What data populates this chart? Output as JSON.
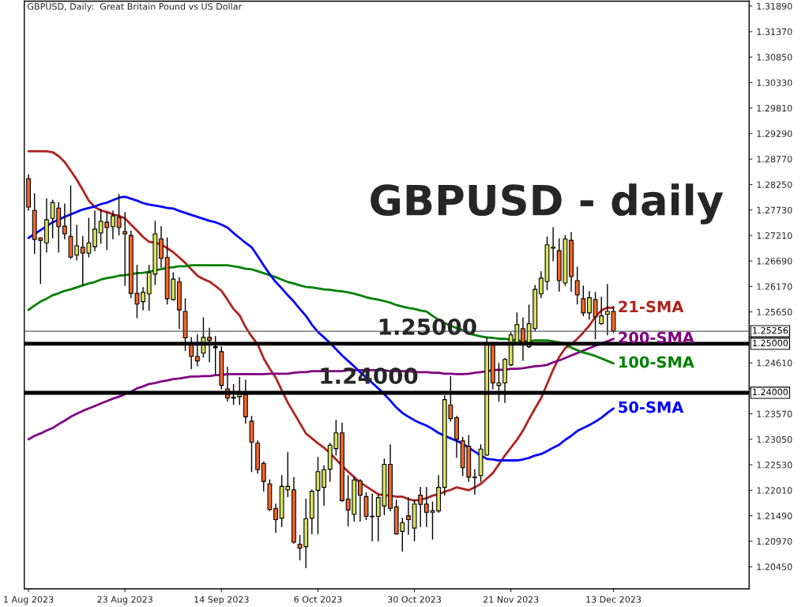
{
  "chart_data": {
    "type": "candlestick",
    "title": "GBPUSD, Daily:  Great Britain Pound vs US Dollar",
    "annotations": [
      "GBPUSD - daily",
      {
        "text": "1.25000",
        "y": 1.25
      },
      {
        "text": "1.24000",
        "y": 1.24
      }
    ],
    "categories": [
      "1 Aug 2023",
      null,
      null,
      null,
      null,
      null,
      null,
      null,
      null,
      null,
      null,
      null,
      null,
      null,
      null,
      null,
      "23 Aug 2023",
      null,
      null,
      null,
      null,
      null,
      null,
      null,
      null,
      null,
      null,
      null,
      null,
      null,
      null,
      null,
      "14 Sep 2023",
      null,
      null,
      null,
      null,
      null,
      null,
      null,
      null,
      null,
      null,
      null,
      null,
      null,
      null,
      null,
      "6 Oct 2023",
      null,
      null,
      null,
      null,
      null,
      null,
      null,
      null,
      null,
      null,
      null,
      null,
      null,
      null,
      null,
      "30 Oct 2023",
      null,
      null,
      null,
      null,
      null,
      null,
      null,
      null,
      null,
      null,
      null,
      null,
      null,
      null,
      null,
      "21 Nov 2023",
      null,
      null,
      null,
      null,
      null,
      null,
      null,
      null,
      null,
      null,
      null,
      null,
      null,
      null,
      null,
      null,
      "13 Dec 2023",
      null,
      null,
      null,
      null,
      null,
      null,
      null,
      null,
      null,
      null,
      null,
      null,
      null,
      null,
      null,
      null,
      null,
      null,
      null,
      null,
      null,
      null
    ],
    "ohlc": [
      [
        1.2837,
        1.2845,
        1.2772,
        1.2779
      ],
      [
        1.2772,
        1.2806,
        1.2684,
        1.2713
      ],
      [
        1.2716,
        1.2716,
        1.2623,
        1.2711
      ],
      [
        1.2706,
        1.2796,
        1.2687,
        1.2753
      ],
      [
        1.2756,
        1.2793,
        1.2716,
        1.2788
      ],
      [
        1.2777,
        1.2788,
        1.2687,
        1.2739
      ],
      [
        1.274,
        1.2785,
        1.2714,
        1.2724
      ],
      [
        1.2719,
        1.2822,
        1.2674,
        1.2677
      ],
      [
        1.2681,
        1.2742,
        1.2671,
        1.27
      ],
      [
        1.2697,
        1.2719,
        1.2619,
        1.2685
      ],
      [
        1.2685,
        1.2756,
        1.2677,
        1.2706
      ],
      [
        1.2698,
        1.2771,
        1.269,
        1.2734
      ],
      [
        1.2726,
        1.2774,
        1.2705,
        1.275
      ],
      [
        1.2748,
        1.2768,
        1.2692,
        1.2737
      ],
      [
        1.2739,
        1.2771,
        1.2714,
        1.2761
      ],
      [
        1.2758,
        1.2805,
        1.2722,
        1.2737
      ],
      [
        1.2729,
        1.2768,
        1.2619,
        1.2724
      ],
      [
        1.2721,
        1.273,
        1.2594,
        1.2603
      ],
      [
        1.2603,
        1.266,
        1.2553,
        1.2581
      ],
      [
        1.2586,
        1.2615,
        1.2569,
        1.2605
      ],
      [
        1.2602,
        1.266,
        1.2568,
        1.2645
      ],
      [
        1.2642,
        1.275,
        1.2621,
        1.2724
      ],
      [
        1.2714,
        1.2739,
        1.2656,
        1.2674
      ],
      [
        1.2676,
        1.2716,
        1.2581,
        1.2592
      ],
      [
        1.259,
        1.2645,
        1.2589,
        1.2632
      ],
      [
        1.2626,
        1.2635,
        1.2531,
        1.2569
      ],
      [
        1.2566,
        1.2592,
        1.2486,
        1.2512
      ],
      [
        1.25,
        1.2513,
        1.2449,
        1.2474
      ],
      [
        1.2474,
        1.2518,
        1.2455,
        1.2465
      ],
      [
        1.2481,
        1.2553,
        1.2473,
        1.2513
      ],
      [
        1.2513,
        1.2532,
        1.2463,
        1.2507
      ],
      [
        1.2494,
        1.2515,
        1.2437,
        1.2492
      ],
      [
        1.2484,
        1.2494,
        1.2408,
        1.2415
      ],
      [
        1.2408,
        1.2452,
        1.2383,
        1.2389
      ],
      [
        1.2391,
        1.2417,
        1.2376,
        1.2389
      ],
      [
        1.2392,
        1.2431,
        1.2376,
        1.2397
      ],
      [
        1.2396,
        1.2426,
        1.2338,
        1.2351
      ],
      [
        1.2342,
        1.2352,
        1.2239,
        1.2299
      ],
      [
        1.2297,
        1.2302,
        1.2236,
        1.2243
      ],
      [
        1.2256,
        1.2259,
        1.2199,
        1.2219
      ],
      [
        1.2214,
        1.2222,
        1.2159,
        1.2162
      ],
      [
        1.2164,
        1.2173,
        1.2115,
        1.2141
      ],
      [
        1.2144,
        1.2231,
        1.2127,
        1.2209
      ],
      [
        1.2202,
        1.2278,
        1.2188,
        1.2209
      ],
      [
        1.2202,
        1.2227,
        1.2093,
        1.2095
      ],
      [
        1.2091,
        1.2109,
        1.2059,
        1.2083
      ],
      [
        1.2086,
        1.2183,
        1.2043,
        1.2143
      ],
      [
        1.2144,
        1.2202,
        1.2112,
        1.2199
      ],
      [
        1.2201,
        1.2268,
        1.2112,
        1.2239
      ],
      [
        1.2207,
        1.2251,
        1.217,
        1.2243
      ],
      [
        1.2244,
        1.2297,
        1.2219,
        1.2293
      ],
      [
        1.2286,
        1.2344,
        1.2273,
        1.2318
      ],
      [
        1.2318,
        1.2338,
        1.2178,
        1.218
      ],
      [
        1.2183,
        1.2231,
        1.2128,
        1.2161
      ],
      [
        1.2152,
        1.2228,
        1.2138,
        1.2222
      ],
      [
        1.222,
        1.2223,
        1.2138,
        1.2191
      ],
      [
        1.2188,
        1.2196,
        1.2141,
        1.2148
      ],
      [
        1.2148,
        1.2193,
        1.2098,
        1.2147
      ],
      [
        1.2148,
        1.2191,
        1.2098,
        1.2186
      ],
      [
        1.2169,
        1.2265,
        1.2151,
        1.2254
      ],
      [
        1.2254,
        1.2294,
        1.2159,
        1.2164
      ],
      [
        1.2167,
        1.2181,
        1.2111,
        1.2112
      ],
      [
        1.2117,
        1.2144,
        1.2077,
        1.2135
      ],
      [
        1.2149,
        1.2186,
        1.2111,
        1.2141
      ],
      [
        1.2124,
        1.2181,
        1.2098,
        1.2173
      ],
      [
        1.2191,
        1.2207,
        1.2127,
        1.2172
      ],
      [
        1.2173,
        1.2207,
        1.2127,
        1.2156
      ],
      [
        1.2156,
        1.2177,
        1.2101,
        1.2159
      ],
      [
        1.2159,
        1.2231,
        1.2156,
        1.2207
      ],
      [
        1.2207,
        1.2394,
        1.2191,
        1.2386
      ],
      [
        1.2375,
        1.2433,
        1.2342,
        1.2347
      ],
      [
        1.2349,
        1.2352,
        1.2268,
        1.2305
      ],
      [
        1.2302,
        1.2309,
        1.2231,
        1.2247
      ],
      [
        1.2291,
        1.2313,
        1.2219,
        1.2228
      ],
      [
        1.2228,
        1.2243,
        1.2193,
        1.2227
      ],
      [
        1.2231,
        1.2294,
        1.2219,
        1.2285
      ],
      [
        1.2273,
        1.2513,
        1.2272,
        1.25
      ],
      [
        1.25,
        1.2503,
        1.2408,
        1.242
      ],
      [
        1.2415,
        1.246,
        1.2383,
        1.242
      ],
      [
        1.242,
        1.247,
        1.238,
        1.2468
      ],
      [
        1.2457,
        1.2523,
        1.2455,
        1.2518
      ],
      [
        1.25,
        1.2563,
        1.2499,
        1.2539
      ],
      [
        1.2531,
        1.2553,
        1.2466,
        1.25
      ],
      [
        1.2494,
        1.2579,
        1.2492,
        1.2541
      ],
      [
        1.2531,
        1.2619,
        1.2526,
        1.2611
      ],
      [
        1.2602,
        1.2647,
        1.2594,
        1.2634
      ],
      [
        1.2627,
        1.2718,
        1.261,
        1.2702
      ],
      [
        1.2695,
        1.2737,
        1.2669,
        1.2697
      ],
      [
        1.269,
        1.2714,
        1.2607,
        1.2629
      ],
      [
        1.2624,
        1.2721,
        1.2619,
        1.2714
      ],
      [
        1.2711,
        1.2727,
        1.2607,
        1.2637
      ],
      [
        1.2629,
        1.2656,
        1.2581,
        1.26
      ],
      [
        1.2592,
        1.2618,
        1.2557,
        1.2563
      ],
      [
        1.2563,
        1.2607,
        1.255,
        1.2594
      ],
      [
        1.259,
        1.2605,
        1.251,
        1.2555
      ],
      [
        1.2541,
        1.2595,
        1.2539,
        1.2557
      ],
      [
        1.256,
        1.2621,
        1.2518,
        1.2566
      ],
      [
        1.2566,
        1.2576,
        1.2523,
        1.2526
      ],
      null,
      null,
      null,
      null,
      null,
      null,
      null,
      null,
      null,
      null,
      null,
      null,
      null,
      null,
      null,
      null,
      null,
      null,
      null,
      null,
      null,
      null
    ],
    "colors": [
      "#f4672a",
      "#f4672a",
      "#f4672a",
      "#d7e35d",
      "#d7e35d",
      "#f4672a",
      "#f4672a",
      "#f4672a",
      "#d7e35d",
      "#f4672a",
      "#d7e35d",
      "#d7e35d",
      "#d7e35d",
      "#f4672a",
      "#d7e35d",
      "#f4672a",
      "#f4672a",
      "#f4672a",
      "#f4672a",
      "#d7e35d",
      "#d7e35d",
      "#d7e35d",
      "#f4672a",
      "#f4672a",
      "#d7e35d",
      "#f4672a",
      "#f4672a",
      "#f4672a",
      "#f4672a",
      "#d7e35d",
      "#f4672a",
      "#f4672a",
      "#f4672a",
      "#f4672a",
      "#f4672a",
      "#d7e35d",
      "#f4672a",
      "#f4672a",
      "#f4672a",
      "#f4672a",
      "#f4672a",
      "#f4672a",
      "#d7e35d",
      "#d7e35d",
      "#f4672a",
      "#f4672a",
      "#d7e35d",
      "#d7e35d",
      "#d7e35d",
      "#d7e35d",
      "#d7e35d",
      "#d7e35d",
      "#f4672a",
      "#f4672a",
      "#d7e35d",
      "#f4672a",
      "#f4672a",
      "#f4672a",
      "#d7e35d",
      "#d7e35d",
      "#f4672a",
      "#f4672a",
      "#d7e35d",
      "#f4672a",
      "#d7e35d",
      "#f4672a",
      "#f4672a",
      "#d7e35d",
      "#d7e35d",
      "#d7e35d",
      "#f4672a",
      "#f4672a",
      "#f4672a",
      "#f4672a",
      "#f4672a",
      "#d7e35d",
      "#d7e35d",
      "#f4672a",
      "#d7e35d",
      "#d7e35d",
      "#d7e35d",
      "#d7e35d",
      "#f4672a",
      "#d7e35d",
      "#d7e35d",
      "#d7e35d",
      "#d7e35d",
      "#d7e35d",
      "#f4672a",
      "#d7e35d",
      "#f4672a",
      "#f4672a",
      "#f4672a",
      "#d7e35d",
      "#f4672a",
      "#d7e35d",
      "#d7e35d",
      "#f4672a",
      null,
      null,
      null,
      null,
      null,
      null,
      null,
      null,
      null,
      null,
      null,
      null,
      null,
      null,
      null,
      null,
      null,
      null,
      null,
      null,
      null,
      null
    ],
    "series": [
      {
        "type": "line",
        "name": "21-SMA",
        "color": "#b0221e",
        "values": [
          1.2893,
          1.2893,
          1.2893,
          1.2893,
          1.2891,
          1.2883,
          1.2871,
          1.2853,
          1.2835,
          1.2814,
          1.2792,
          1.2779,
          1.2772,
          1.2769,
          1.2764,
          1.2761,
          1.2756,
          1.2743,
          1.2731,
          1.2718,
          1.2708,
          1.2706,
          1.2703,
          1.2695,
          1.2687,
          1.2676,
          1.2665,
          1.2652,
          1.2639,
          1.2632,
          1.2627,
          1.2618,
          1.2608,
          1.259,
          1.2571,
          1.2558,
          1.2534,
          1.2515,
          1.2499,
          1.247,
          1.2449,
          1.2431,
          1.2405,
          1.238,
          1.2359,
          1.2338,
          1.2317,
          1.2307,
          1.2297,
          1.2288,
          1.2277,
          1.2264,
          1.2251,
          1.2239,
          1.2228,
          1.2217,
          1.2209,
          1.2201,
          1.2193,
          1.2191,
          1.219,
          1.2188,
          1.2188,
          1.2183,
          1.218,
          1.2182,
          1.2185,
          1.219,
          1.2193,
          1.2198,
          1.2202,
          1.2207,
          1.2204,
          1.2201,
          1.2207,
          1.2214,
          1.2225,
          1.2236,
          1.2254,
          1.2272,
          1.2288,
          1.2304,
          1.2323,
          1.2346,
          1.2368,
          1.2389,
          1.2418,
          1.2447,
          1.2473,
          1.2491,
          1.2499,
          1.251,
          1.2523,
          1.2537,
          1.2555,
          1.2568,
          1.2574,
          1.2573,
          null,
          null,
          null,
          null,
          null,
          null,
          null,
          null,
          null,
          null,
          null,
          null,
          null,
          null,
          null,
          null,
          null,
          null,
          null,
          null,
          null,
          null
        ]
      },
      {
        "type": "line",
        "name": "200-SMA",
        "color": "#800080",
        "values": [
          1.2305,
          1.2312,
          1.2317,
          1.2323,
          1.2328,
          1.2336,
          1.2343,
          1.2351,
          1.2357,
          1.2363,
          1.2368,
          1.2373,
          1.2378,
          1.2383,
          1.2388,
          1.2392,
          1.2397,
          1.2402,
          1.2409,
          1.2413,
          1.2418,
          1.242,
          1.2423,
          1.2425,
          1.2428,
          1.2429,
          1.2431,
          1.2433,
          1.2433,
          1.2434,
          1.2434,
          1.2436,
          1.2436,
          1.2438,
          1.2438,
          1.2438,
          1.2438,
          1.2438,
          1.2438,
          1.2438,
          1.2439,
          1.2439,
          1.2439,
          1.2439,
          1.2441,
          1.2442,
          1.2442,
          1.2444,
          1.2444,
          1.2444,
          1.2444,
          1.2444,
          1.2444,
          1.2446,
          1.2446,
          1.2446,
          1.2446,
          1.2446,
          1.2446,
          1.2446,
          1.2444,
          1.2444,
          1.2444,
          1.2444,
          1.2442,
          1.2442,
          1.2442,
          1.2441,
          1.2441,
          1.2439,
          1.2439,
          1.2438,
          1.2438,
          1.2439,
          1.2441,
          1.2442,
          1.2444,
          1.2446,
          1.2447,
          1.2447,
          1.2449,
          1.2449,
          1.245,
          1.2452,
          1.2454,
          1.2455,
          1.2457,
          1.2462,
          1.2466,
          1.2471,
          1.2476,
          1.2481,
          1.2486,
          1.2491,
          1.2496,
          1.25,
          1.2505,
          1.251,
          null,
          null,
          null,
          null,
          null,
          null,
          null,
          null,
          null,
          null,
          null,
          null,
          null,
          null,
          null,
          null,
          null,
          null,
          null,
          null,
          null,
          null
        ]
      },
      {
        "type": "line",
        "name": "100-SMA",
        "color": "#008000",
        "values": [
          1.2569,
          1.2578,
          1.2586,
          1.2592,
          1.2599,
          1.2603,
          1.2608,
          1.2611,
          1.2615,
          1.2619,
          1.2623,
          1.2626,
          1.2631,
          1.2634,
          1.2636,
          1.2639,
          1.264,
          1.2642,
          1.2644,
          1.2645,
          1.2647,
          1.265,
          1.2652,
          1.2655,
          1.2656,
          1.2658,
          1.2658,
          1.266,
          1.266,
          1.266,
          1.266,
          1.266,
          1.266,
          1.266,
          1.2658,
          1.2656,
          1.2653,
          1.2652,
          1.2648,
          1.2644,
          1.264,
          1.2636,
          1.2631,
          1.2626,
          1.2623,
          1.2619,
          1.2616,
          1.2615,
          1.2613,
          1.2611,
          1.261,
          1.2608,
          1.2607,
          1.2605,
          1.2602,
          1.2599,
          1.2595,
          1.2592,
          1.259,
          1.2587,
          1.2584,
          1.2579,
          1.2576,
          1.2573,
          1.2571,
          1.2568,
          1.2566,
          1.2557,
          1.2549,
          1.2542,
          1.2537,
          1.2532,
          1.2528,
          1.2521,
          1.2518,
          1.2515,
          1.2513,
          1.2512,
          1.251,
          1.251,
          1.2508,
          1.2507,
          1.2505,
          1.2505,
          1.2507,
          1.2507,
          1.2507,
          1.2505,
          1.2503,
          1.2499,
          1.2492,
          1.2487,
          1.2482,
          1.2479,
          1.2475,
          1.247,
          1.2465,
          1.246,
          null,
          null,
          null,
          null,
          null,
          null,
          null,
          null,
          null,
          null,
          null,
          null,
          null,
          null,
          null,
          null,
          null,
          null,
          null,
          null,
          null,
          null
        ]
      },
      {
        "type": "line",
        "name": "50-SMA",
        "color": "#0000ff",
        "values": [
          1.2716,
          1.2724,
          1.2732,
          1.274,
          1.2748,
          1.2753,
          1.2759,
          1.2764,
          1.2769,
          1.2774,
          1.2777,
          1.278,
          1.2785,
          1.2788,
          1.2793,
          1.2798,
          1.28,
          1.2796,
          1.2792,
          1.2787,
          1.2784,
          1.2782,
          1.278,
          1.2777,
          1.2776,
          1.2771,
          1.2767,
          1.2763,
          1.2759,
          1.2755,
          1.2751,
          1.2748,
          1.2743,
          1.2737,
          1.2726,
          1.2716,
          1.2706,
          1.2697,
          1.2679,
          1.266,
          1.2642,
          1.2626,
          1.2613,
          1.2599,
          1.2586,
          1.2571,
          1.2557,
          1.2539,
          1.2524,
          1.2513,
          1.2502,
          1.2489,
          1.2476,
          1.2465,
          1.2454,
          1.2442,
          1.2431,
          1.242,
          1.2409,
          1.2397,
          1.2384,
          1.237,
          1.2359,
          1.2351,
          1.2344,
          1.2338,
          1.2333,
          1.2326,
          1.2318,
          1.2312,
          1.2307,
          1.2302,
          1.2296,
          1.2288,
          1.228,
          1.2272,
          1.2265,
          1.2264,
          1.2262,
          1.2262,
          1.2262,
          1.2262,
          1.2264,
          1.2267,
          1.2272,
          1.2275,
          1.2281,
          1.2288,
          1.2294,
          1.2304,
          1.2312,
          1.2322,
          1.2328,
          1.2334,
          1.2341,
          1.2349,
          1.2359,
          1.2368,
          null,
          null,
          null,
          null,
          null,
          null,
          null,
          null,
          null,
          null,
          null,
          null,
          null,
          null,
          null,
          null,
          null,
          null,
          null,
          null,
          null,
          null
        ]
      }
    ],
    "ref_lines": [
      {
        "axis": "y",
        "value": 1.25256,
        "label": "1.25256",
        "color": "#606060",
        "line_style": "solid"
      },
      {
        "axis": "y",
        "value": 1.25,
        "label": "1.25000",
        "color": "#000000",
        "line_style": "solid"
      },
      {
        "axis": "y",
        "value": 1.24,
        "label": "1.24000",
        "color": "#000000",
        "line_style": "solid"
      }
    ],
    "ylim": [
      1.2,
      1.3199
    ],
    "yticks": [
      {
        "value": 1.2045,
        "label": "1.20450"
      },
      {
        "value": 1.2097,
        "label": "1.20970"
      },
      {
        "value": 1.2149,
        "label": "1.21490"
      },
      {
        "value": 1.2201,
        "label": "1.22010"
      },
      {
        "value": 1.2253,
        "label": "1.22530"
      },
      {
        "value": 1.2305,
        "label": "1.23050"
      },
      {
        "value": 1.2357,
        "label": "1.23570"
      },
      {
        "value": 1.2409,
        "label": null
      },
      {
        "value": 1.2461,
        "label": "1.24610"
      },
      {
        "value": 1.2513,
        "label": null
      },
      {
        "value": 1.2565,
        "label": "1.25650"
      },
      {
        "value": 1.2617,
        "label": "1.26170"
      },
      {
        "value": 1.2669,
        "label": "1.26690"
      },
      {
        "value": 1.2721,
        "label": "1.27210"
      },
      {
        "value": 1.2773,
        "label": "1.27730"
      },
      {
        "value": 1.2825,
        "label": "1.28250"
      },
      {
        "value": 1.2877,
        "label": "1.28770"
      },
      {
        "value": 1.2929,
        "label": "1.29290"
      },
      {
        "value": 1.2981,
        "label": "1.29810"
      },
      {
        "value": 1.3033,
        "label": "1.30330"
      },
      {
        "value": 1.3085,
        "label": "1.30850"
      },
      {
        "value": 1.3137,
        "label": "1.31370"
      },
      {
        "value": 1.3189,
        "label": "1.31890"
      }
    ],
    "grid": false
  }
}
